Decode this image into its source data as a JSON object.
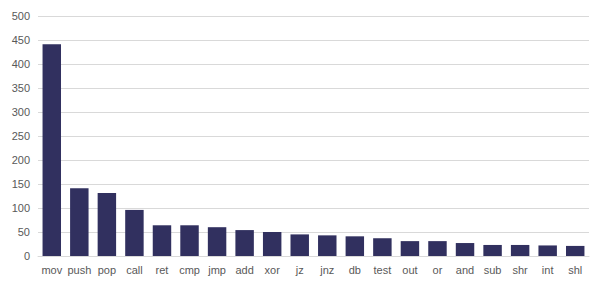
{
  "chart_data": {
    "type": "bar",
    "categories": [
      "mov",
      "push",
      "pop",
      "call",
      "ret",
      "cmp",
      "jmp",
      "add",
      "xor",
      "jz",
      "jnz",
      "db",
      "test",
      "out",
      "or",
      "and",
      "sub",
      "shr",
      "int",
      "shl"
    ],
    "values": [
      441,
      141,
      131,
      96,
      64,
      64,
      60,
      54,
      50,
      45,
      43,
      41,
      37,
      31,
      31,
      27,
      23,
      23,
      22,
      21
    ],
    "color": "#31305f",
    "ylim": [
      0,
      500
    ],
    "yticks": [
      0,
      50,
      100,
      150,
      200,
      250,
      300,
      350,
      400,
      450,
      500
    ],
    "grid": true
  }
}
